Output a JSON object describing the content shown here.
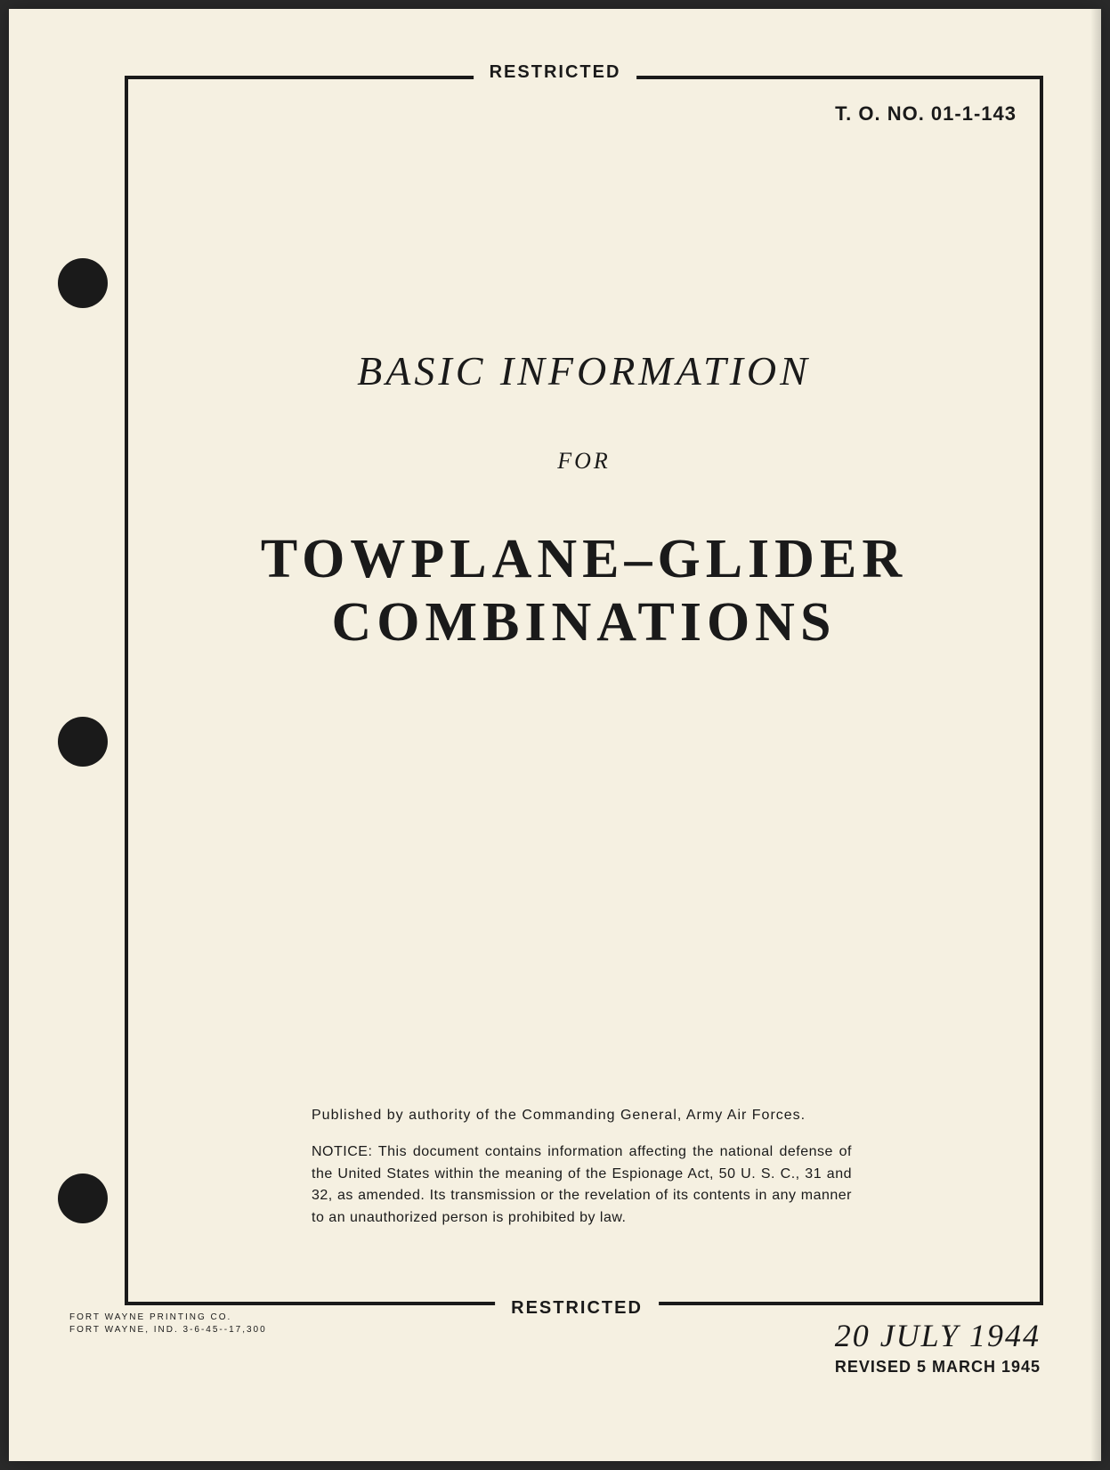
{
  "classification": {
    "top": "RESTRICTED",
    "bottom": "RESTRICTED"
  },
  "header": {
    "to_number": "T. O. NO. 01-1-143"
  },
  "title": {
    "line1": "BASIC INFORMATION",
    "line2": "FOR",
    "line3": "TOWPLANE–GLIDER",
    "line4": "COMBINATIONS"
  },
  "notice": {
    "published_by": "Published by authority of the Commanding General, Army Air Forces.",
    "notice_text": "NOTICE: This document contains information affecting the national defense of the United States within the meaning of the Espionage Act, 50 U. S. C., 31 and 32, as amended. Its transmission or the revelation of its contents in any manner to an unauthorized person is prohibited by law."
  },
  "printer": {
    "line1": "FORT WAYNE PRINTING CO.",
    "line2": "FORT WAYNE, IND.  3-6-45--17,300"
  },
  "dates": {
    "main": "20 JULY 1944",
    "revised": "REVISED 5 MARCH 1945"
  },
  "colors": {
    "page_bg": "#f5f0e1",
    "text": "#1a1a1a",
    "hole": "#1a1a1a",
    "border": "#1a1a1a"
  }
}
